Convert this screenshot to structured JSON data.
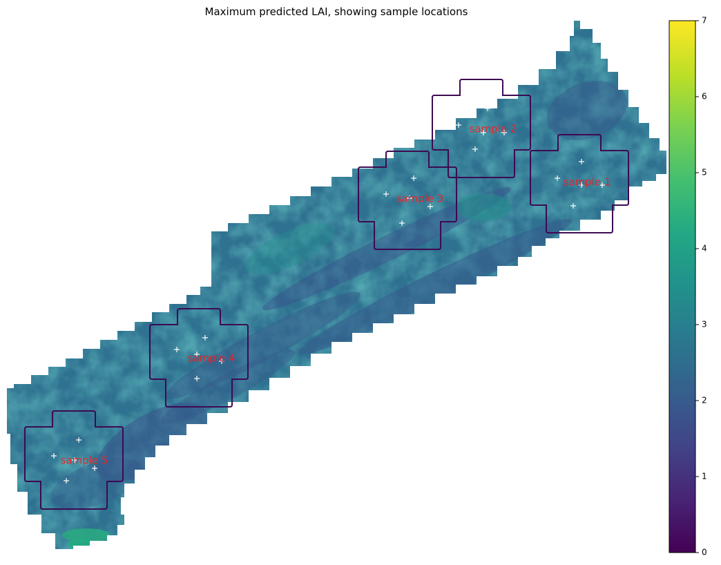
{
  "chart_data": {
    "type": "heatmap",
    "title": "Maximum predicted LAI, showing sample locations",
    "colormap": "viridis",
    "grid": false,
    "axes_visible": false,
    "colorbar": {
      "placement": "right",
      "vmin": 0,
      "vmax": 7,
      "ticks": [
        "0",
        "1",
        "2",
        "3",
        "4",
        "5",
        "6",
        "7"
      ]
    },
    "samples": [
      {
        "label": "sample 1"
      },
      {
        "label": "sample 2"
      },
      {
        "label": "sample 3"
      },
      {
        "label": "sample 4"
      },
      {
        "label": "sample 5"
      }
    ],
    "typical_values": {
      "field_background": 2.6,
      "sample_zone": 2.8,
      "hotspot_bottom_left": 4.3
    }
  }
}
